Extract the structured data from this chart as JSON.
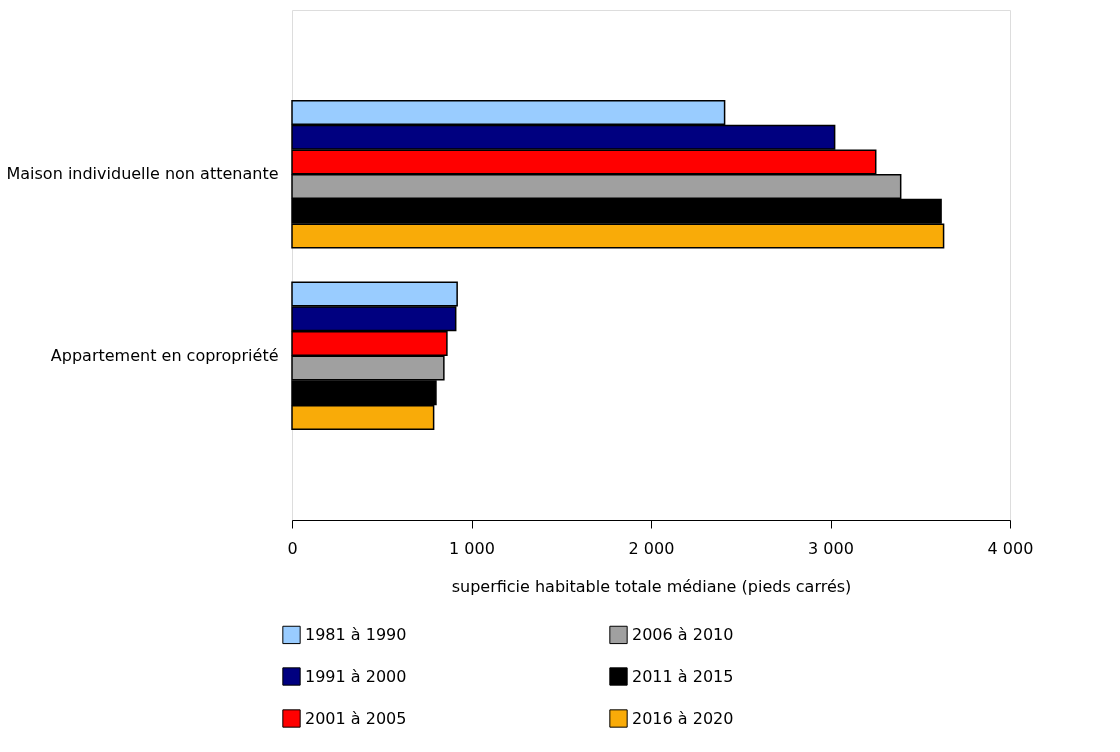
{
  "chart_data": {
    "type": "bar",
    "orientation": "horizontal",
    "xlabel": "superficie habitable totale médiane (pieds carrés)",
    "categories": [
      "Maison individuelle non attenante",
      "Appartement en copropriété"
    ],
    "series": [
      {
        "name": "1981 à 1990",
        "color": "#99ccff",
        "values": [
          2410,
          920
        ]
      },
      {
        "name": "1991 à 2000",
        "color": "#000080",
        "values": [
          3023,
          912
        ]
      },
      {
        "name": "2001 à 2005",
        "color": "#ff0000",
        "values": [
          3252,
          863
        ]
      },
      {
        "name": "2006 à 2010",
        "color": "#a0a0a0",
        "values": [
          3391,
          846
        ]
      },
      {
        "name": "2011 à 2015",
        "color": "#000000",
        "values": [
          3616,
          802
        ]
      },
      {
        "name": "2016 à 2020",
        "color": "#f9ab08",
        "values": [
          3630,
          789
        ]
      }
    ],
    "xlim": [
      0,
      4000
    ],
    "xticks": [
      0,
      {
        "value": 1000,
        "label": "1 000"
      },
      {
        "value": 2000,
        "label": "2 000"
      },
      {
        "value": 3000,
        "label": "3 000"
      },
      {
        "value": 4000,
        "label": "4 000"
      }
    ],
    "grid": false,
    "legend": "bottom"
  }
}
